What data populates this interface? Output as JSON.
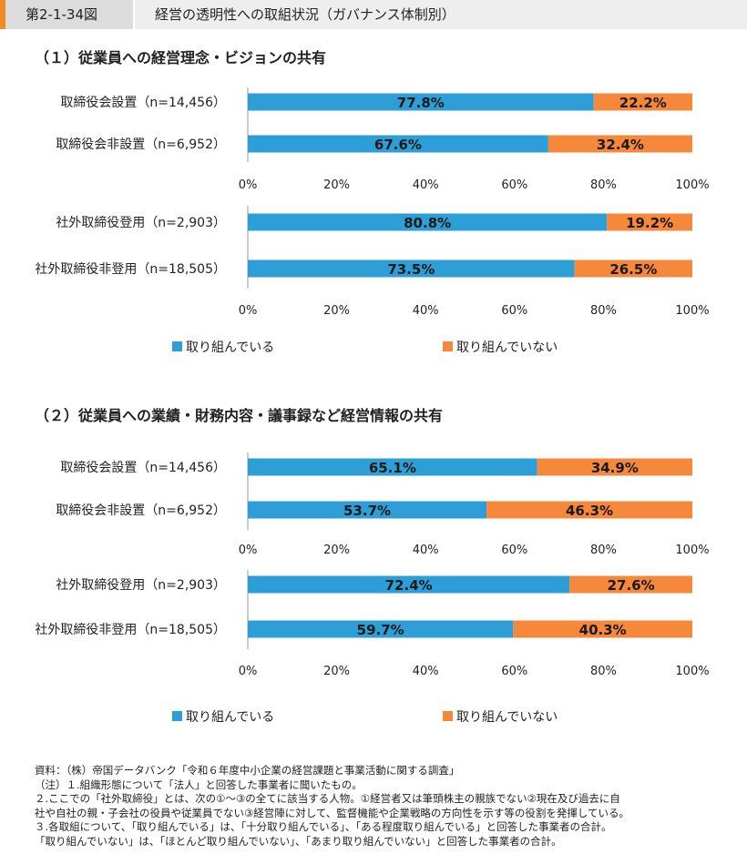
{
  "header": {
    "figure_no": "第2-1-34図",
    "title": "経営の透明性への取組状況（ガバナンス体制別）"
  },
  "colors": {
    "blue": "#2e9fd6",
    "orange": "#f5883a"
  },
  "chart_data": [
    {
      "type": "bar",
      "orientation": "horizontal-stacked-100",
      "title": "（１）従業員への経営理念・ビジョンの共有",
      "legend": [
        "取り組んでいる",
        "取り組んでいない"
      ],
      "ticks": [
        "0%",
        "20%",
        "40%",
        "60%",
        "80%",
        "100%"
      ],
      "groups": [
        {
          "rows": [
            {
              "label": "取締役会設置（n=14,456）",
              "values": [
                77.8,
                22.2
              ],
              "value_labels": [
                "77.8%",
                "22.2%"
              ]
            },
            {
              "label": "取締役会非設置（n=6,952）",
              "values": [
                67.6,
                32.4
              ],
              "value_labels": [
                "67.6%",
                "32.4%"
              ]
            }
          ]
        },
        {
          "rows": [
            {
              "label": "社外取締役登用（n=2,903）",
              "values": [
                80.8,
                19.2
              ],
              "value_labels": [
                "80.8%",
                "19.2%"
              ]
            },
            {
              "label": "社外取締役非登用（n=18,505）",
              "values": [
                73.5,
                26.5
              ],
              "value_labels": [
                "73.5%",
                "26.5%"
              ]
            }
          ]
        }
      ]
    },
    {
      "type": "bar",
      "orientation": "horizontal-stacked-100",
      "title": "（２）従業員への業績・財務内容・議事録など経営情報の共有",
      "legend": [
        "取り組んでいる",
        "取り組んでいない"
      ],
      "ticks": [
        "0%",
        "20%",
        "40%",
        "60%",
        "80%",
        "100%"
      ],
      "groups": [
        {
          "rows": [
            {
              "label": "取締役会設置（n=14,456）",
              "values": [
                65.1,
                34.9
              ],
              "value_labels": [
                "65.1%",
                "34.9%"
              ]
            },
            {
              "label": "取締役会非設置（n=6,952）",
              "values": [
                53.7,
                46.3
              ],
              "value_labels": [
                "53.7%",
                "46.3%"
              ]
            }
          ]
        },
        {
          "rows": [
            {
              "label": "社外取締役登用（n=2,903）",
              "values": [
                72.4,
                27.6
              ],
              "value_labels": [
                "72.4%",
                "27.6%"
              ]
            },
            {
              "label": "社外取締役非登用（n=18,505）",
              "values": [
                59.7,
                40.3
              ],
              "value_labels": [
                "59.7%",
                "40.3%"
              ]
            }
          ]
        }
      ]
    }
  ],
  "notes": [
    "資料：（株）帝国データバンク「令和６年度中小企業の経営課題と事業活動に関する調査」",
    "（注）１.組織形態について「法人」と回答した事業者に聞いたもの。",
    "２.ここでの「社外取締役」とは、次の①～③の全てに該当する人物。①経営者又は筆頭株主の親族でない②現在及び過去に自",
    "社や自社の親・子会社の役員や従業員でない③経営陣に対して、監督機能や企業戦略の方向性を示す等の役割を発揮している。",
    "３.各取組について、「取り組んでいる」は、「十分取り組んでいる」、「ある程度取り組んでいる」と回答した事業者の合計。",
    "「取り組んでいない」は、「ほとんど取り組んでいない」、「あまり取り組んでいない」と回答した事業者の合計。"
  ]
}
